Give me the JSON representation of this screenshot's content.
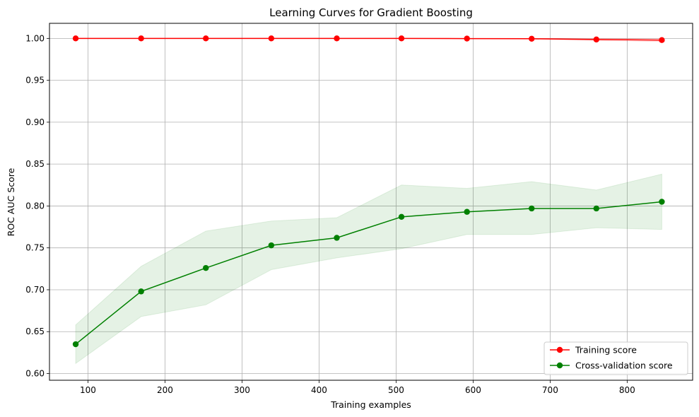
{
  "chart_data": {
    "type": "line",
    "title": "Learning Curves for Gradient Boosting",
    "xlabel": "Training examples",
    "ylabel": "ROC AUC Score",
    "xlim": [
      50,
      885
    ],
    "ylim": [
      0.592,
      1.018
    ],
    "xticks": [
      100,
      200,
      300,
      400,
      500,
      600,
      700,
      800
    ],
    "yticks": [
      0.6,
      0.65,
      0.7,
      0.75,
      0.8,
      0.85,
      0.9,
      0.95,
      1.0
    ],
    "xtick_labels": [
      "100",
      "200",
      "300",
      "400",
      "500",
      "600",
      "700",
      "800"
    ],
    "ytick_labels": [
      "0.60",
      "0.65",
      "0.70",
      "0.75",
      "0.80",
      "0.85",
      "0.90",
      "0.95",
      "1.00"
    ],
    "grid": true,
    "legend_position": "bottom-right",
    "x": [
      84,
      169,
      253,
      338,
      423,
      507,
      592,
      676,
      760,
      845
    ],
    "series": [
      {
        "name": "Training score",
        "color": "#ff0000",
        "band_color": "#ff0000",
        "values": [
          1.0,
          1.0,
          1.0,
          1.0,
          1.0,
          1.0,
          0.9998,
          0.9996,
          0.9987,
          0.998
        ],
        "band_upper": [
          1.0,
          1.0,
          1.0,
          1.0,
          1.0,
          1.0,
          1.0,
          1.0,
          1.0,
          1.0
        ],
        "band_lower": [
          1.0,
          1.0,
          1.0,
          1.0,
          1.0,
          1.0,
          0.9996,
          0.9992,
          0.9975,
          0.9962
        ]
      },
      {
        "name": "Cross-validation score",
        "color": "#008000",
        "band_color": "#008000",
        "values": [
          0.635,
          0.698,
          0.726,
          0.753,
          0.762,
          0.787,
          0.793,
          0.797,
          0.797,
          0.805
        ],
        "band_upper": [
          0.658,
          0.728,
          0.77,
          0.782,
          0.786,
          0.825,
          0.821,
          0.829,
          0.819,
          0.838
        ],
        "band_lower": [
          0.612,
          0.668,
          0.682,
          0.724,
          0.738,
          0.749,
          0.766,
          0.766,
          0.774,
          0.772
        ]
      }
    ]
  }
}
